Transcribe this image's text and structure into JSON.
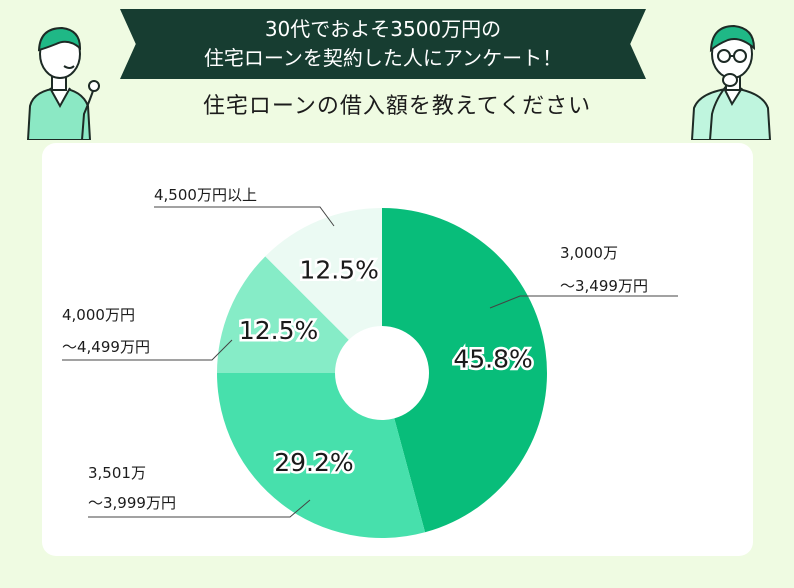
{
  "header": {
    "banner_line1": "30代でおよそ3500万円の",
    "banner_line2": "住宅ローンを契約した人にアンケート！",
    "subtitle": "住宅ローンの借入額を教えてください"
  },
  "chart_data": {
    "type": "pie",
    "title": "住宅ローンの借入額を教えてください",
    "donut": true,
    "slices": [
      {
        "label_lines": [
          "3,000万",
          "〜3,499万円"
        ],
        "value": 45.8,
        "display": "45.8%",
        "color": "#08bd7a"
      },
      {
        "label_lines": [
          "3,501万",
          "〜3,999万円"
        ],
        "value": 29.2,
        "display": "29.2%",
        "color": "#47e0ac"
      },
      {
        "label_lines": [
          "4,000万円",
          "〜4,499万円"
        ],
        "value": 12.5,
        "display": "12.5%",
        "color": "#86ecc7"
      },
      {
        "label_lines": [
          "4,500万円以上"
        ],
        "value": 12.5,
        "display": "12.5%",
        "color": "#ebfaf3"
      }
    ]
  }
}
